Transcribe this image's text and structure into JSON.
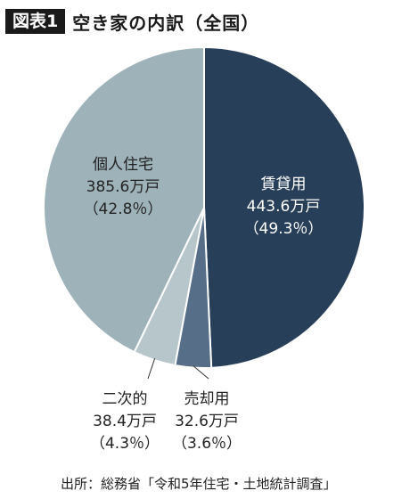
{
  "header": {
    "tag": "図表1",
    "title": "空き家の内訳（全国）"
  },
  "chart_data": {
    "type": "pie",
    "unit": "万戸",
    "slices": [
      {
        "name": "賃貸用",
        "value": 443.6,
        "value_text": "443.6万戸",
        "percent": 49.3,
        "percent_text": "（49.3％）",
        "color": "#283f5a",
        "label_color": "#ffffff"
      },
      {
        "name": "売却用",
        "value": 32.6,
        "value_text": "32.6万戸",
        "percent": 3.6,
        "percent_text": "（3.6％）",
        "color": "#566e88",
        "label_color": "#222222"
      },
      {
        "name": "二次的",
        "value": 38.4,
        "value_text": "38.4万戸",
        "percent": 4.3,
        "percent_text": "（4.3％）",
        "color": "#b6c6cb",
        "label_color": "#222222"
      },
      {
        "name": "個人住宅",
        "value": 385.6,
        "value_text": "385.6万戸",
        "percent": 42.8,
        "percent_text": "（42.8％）",
        "color": "#9eb2b9",
        "label_color": "#222222"
      }
    ]
  },
  "source": "出所：総務省「令和5年住宅・土地統計調査」"
}
